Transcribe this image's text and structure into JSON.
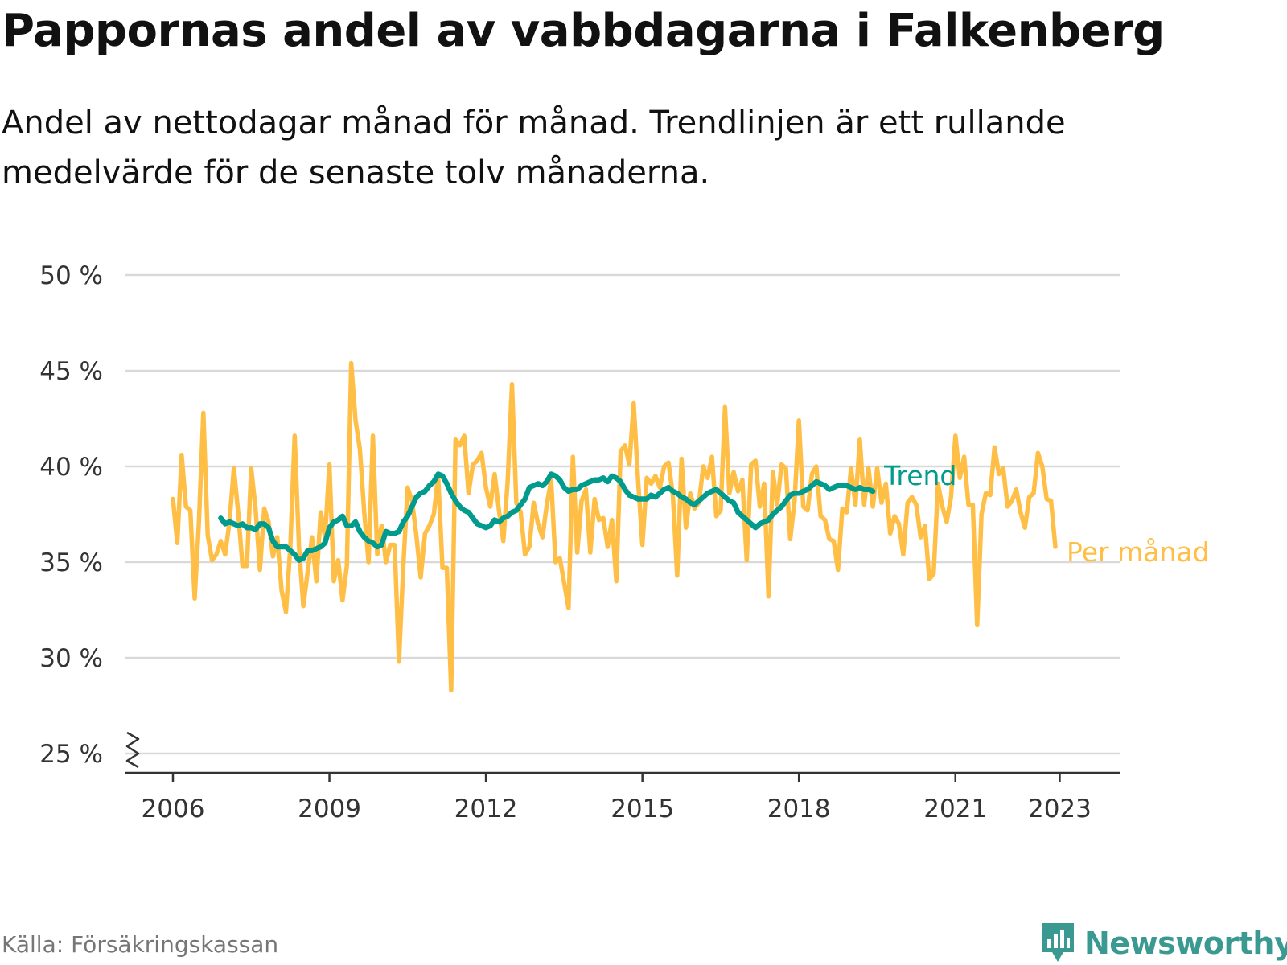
{
  "header": {
    "title": "Pappornas andel av vabbdagarna i Falkenberg",
    "subtitle": "Andel av nettodagar månad för månad. Trendlinjen är ett rullande medelvärde för de senaste tolv månaderna."
  },
  "footer": {
    "source": "Källa: Försäkringskassan",
    "brand": "Newsworthy",
    "brand_icon": "newsworthy-chart-bubble-icon"
  },
  "colors": {
    "trend": "#009b8d",
    "monthly": "#ffbf47",
    "grid": "#d9d9d9",
    "brand": "#3a9a91"
  },
  "chart_data": {
    "type": "line",
    "title": "Pappornas andel av vabbdagarna i Falkenberg",
    "ylim": [
      25,
      50
    ],
    "xlim": [
      "2006-01",
      "2023-05"
    ],
    "y_ticks": [
      50,
      45,
      40,
      35,
      30,
      25
    ],
    "y_tick_labels": [
      "50 %",
      "45 %",
      "40 %",
      "35 %",
      "30 %",
      "25 %"
    ],
    "x_ticks": [
      "2006-01",
      "2009-01",
      "2012-01",
      "2015-01",
      "2018-01",
      "2021-01",
      "2023-01"
    ],
    "x_tick_labels": [
      "2006",
      "2009",
      "2012",
      "2015",
      "2018",
      "2021",
      "2023"
    ],
    "axis_break": true,
    "grid": "horizontal",
    "legend": "inline-right",
    "series": [
      {
        "name": "Per månad",
        "start": "2006-01",
        "values": [
          38.3,
          36.0,
          40.6,
          37.9,
          37.7,
          33.1,
          37.2,
          42.8,
          36.4,
          35.1,
          35.4,
          36.1,
          35.4,
          37.1,
          39.9,
          37.6,
          34.8,
          34.8,
          39.9,
          37.8,
          34.6,
          37.8,
          37.1,
          35.3,
          36.3,
          33.5,
          32.4,
          35.8,
          41.6,
          35.8,
          32.7,
          34.5,
          36.3,
          34.0,
          37.6,
          36.3,
          40.1,
          34.0,
          35.1,
          33.0,
          34.8,
          45.4,
          42.4,
          40.9,
          37.6,
          35.0,
          41.6,
          35.4,
          36.9,
          35.0,
          35.9,
          35.9,
          29.8,
          34.8,
          38.9,
          38.2,
          36.4,
          34.2,
          36.5,
          36.9,
          37.5,
          39.5,
          34.7,
          34.7,
          28.3,
          41.4,
          41.1,
          41.6,
          38.6,
          40.1,
          40.3,
          40.7,
          38.9,
          37.9,
          39.6,
          37.7,
          36.1,
          39.2,
          44.3,
          38.1,
          37.6,
          35.4,
          35.8,
          38.1,
          37.0,
          36.3,
          38.0,
          39.3,
          35.0,
          35.2,
          33.9,
          32.6,
          40.5,
          35.5,
          38.2,
          38.8,
          35.5,
          38.3,
          37.2,
          37.3,
          35.8,
          37.2,
          34.0,
          40.8,
          41.1,
          40.1,
          43.3,
          39.3,
          35.9,
          39.4,
          39.1,
          39.5,
          38.9,
          40.0,
          40.2,
          38.5,
          34.3,
          40.4,
          36.8,
          38.6,
          37.8,
          38.1,
          40.0,
          39.4,
          40.5,
          37.4,
          37.7,
          43.1,
          38.6,
          39.7,
          38.7,
          39.3,
          35.1,
          40.1,
          40.3,
          37.9,
          39.1,
          33.2,
          39.7,
          38.0,
          40.1,
          39.9,
          36.2,
          38.2,
          42.4,
          37.9,
          37.7,
          39.6,
          40.0,
          37.4,
          37.2,
          36.2,
          36.1,
          34.6,
          37.8,
          37.6,
          39.9,
          38.0,
          41.4,
          38.0,
          39.9,
          37.9,
          39.9,
          38.1,
          39.1,
          36.5,
          37.4,
          37.0,
          35.4,
          38.1,
          38.4,
          38.0,
          36.3,
          36.9,
          34.1,
          34.4,
          39.1,
          37.9,
          37.1,
          38.4,
          41.6,
          39.4,
          40.5,
          38.0,
          38.0,
          31.7,
          37.5,
          38.6,
          38.5,
          41.0,
          39.6,
          39.9,
          37.9,
          38.2,
          38.8,
          37.6,
          36.8,
          38.4,
          38.6,
          40.7,
          40.0,
          38.3,
          38.2,
          35.8
        ]
      },
      {
        "name": "Trend",
        "start": "2006-12",
        "values": [
          37.3,
          37.0,
          37.1,
          37.0,
          36.9,
          37.0,
          36.8,
          36.8,
          36.7,
          37.0,
          37.0,
          36.8,
          36.1,
          35.8,
          35.8,
          35.8,
          35.6,
          35.4,
          35.1,
          35.2,
          35.6,
          35.6,
          35.7,
          35.8,
          36.0,
          36.8,
          37.1,
          37.2,
          37.4,
          36.9,
          36.9,
          37.1,
          36.6,
          36.3,
          36.1,
          36.0,
          35.8,
          35.9,
          36.6,
          36.5,
          36.5,
          36.6,
          37.1,
          37.4,
          37.9,
          38.4,
          38.6,
          38.7,
          39.0,
          39.2,
          39.6,
          39.5,
          39.1,
          38.6,
          38.2,
          37.9,
          37.7,
          37.6,
          37.3,
          37.0,
          36.9,
          36.8,
          36.9,
          37.2,
          37.1,
          37.3,
          37.4,
          37.6,
          37.7,
          38.0,
          38.3,
          38.9,
          39.0,
          39.1,
          39.0,
          39.2,
          39.6,
          39.5,
          39.3,
          38.9,
          38.7,
          38.8,
          38.8,
          39.0,
          39.1,
          39.2,
          39.3,
          39.3,
          39.4,
          39.2,
          39.5,
          39.4,
          39.2,
          38.8,
          38.5,
          38.4,
          38.3,
          38.3,
          38.3,
          38.5,
          38.4,
          38.6,
          38.8,
          38.9,
          38.7,
          38.6,
          38.4,
          38.3,
          38.1,
          38.0,
          38.2,
          38.4,
          38.6,
          38.7,
          38.8,
          38.6,
          38.4,
          38.2,
          38.1,
          37.6,
          37.4,
          37.2,
          37.0,
          36.8,
          37.0,
          37.1,
          37.2,
          37.5,
          37.7,
          37.9,
          38.2,
          38.5,
          38.6,
          38.6,
          38.7,
          38.8,
          39.0,
          39.2,
          39.1,
          39.0,
          38.8,
          38.9,
          39.0,
          39.0,
          39.0,
          38.9,
          38.8,
          38.9,
          38.8,
          38.8,
          38.7
        ]
      }
    ]
  }
}
